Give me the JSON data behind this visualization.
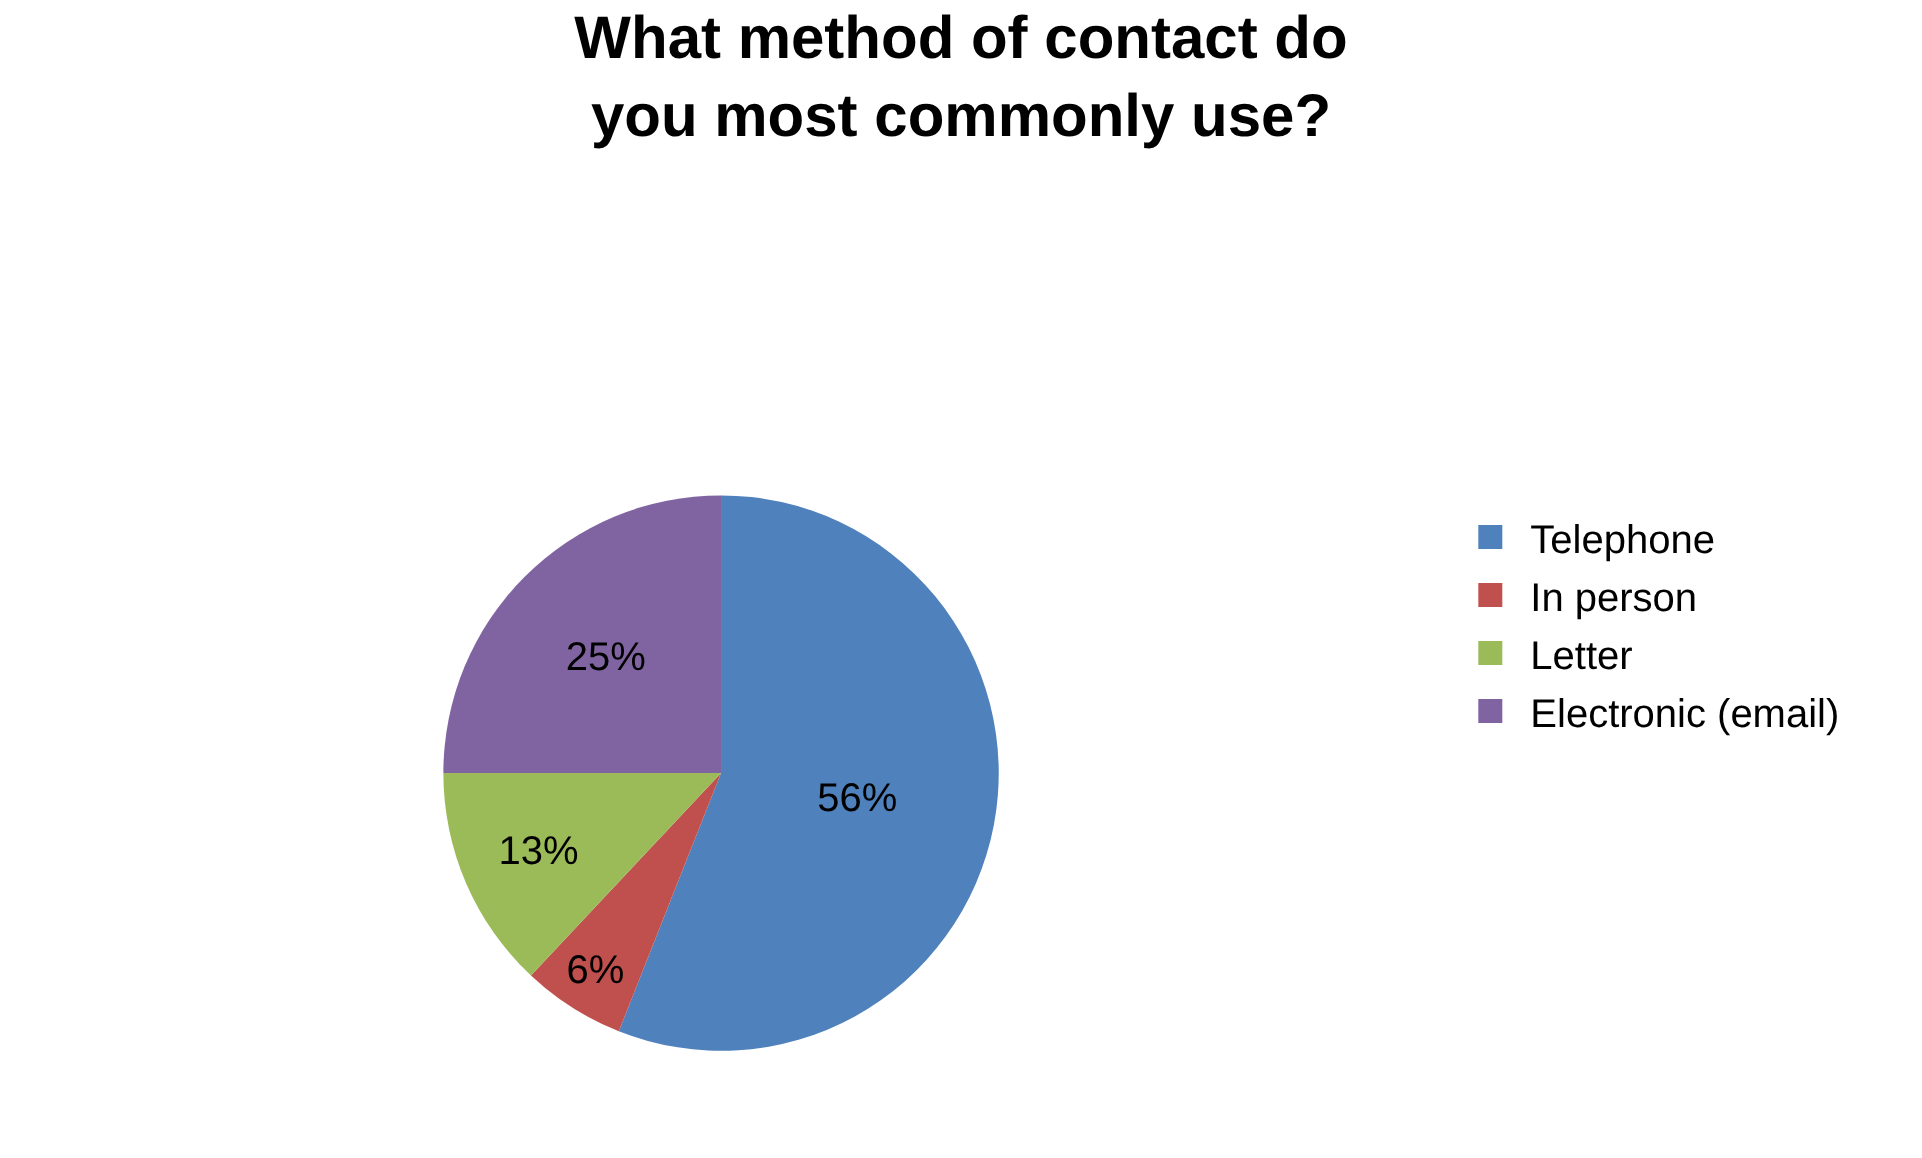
{
  "chart_data": {
    "type": "pie",
    "title": "What method of contact do you most commonly use?",
    "categories": [
      "Telephone",
      "In person",
      "Letter",
      "Electronic (email)"
    ],
    "values": [
      56,
      6,
      13,
      25
    ],
    "colors": [
      "#4f81bd",
      "#c0504d",
      "#9bbb59",
      "#8064a2"
    ],
    "value_labels": [
      "56%",
      "6%",
      "13%",
      "25%"
    ],
    "legend": "right"
  }
}
